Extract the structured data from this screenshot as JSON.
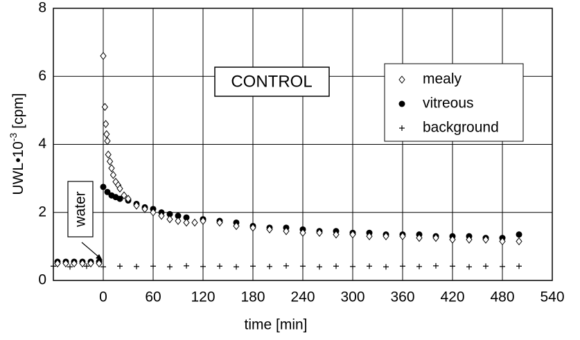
{
  "chart_data": {
    "type": "scatter",
    "xlabel": "time [min]",
    "ylabel": {
      "main": "UWL•10",
      "sup": "-3",
      "unit": "[cpm]"
    },
    "annotations": [
      "CONTROL",
      "water"
    ],
    "xlim": [
      -60,
      540
    ],
    "xticks": [
      0,
      60,
      120,
      180,
      240,
      300,
      360,
      420,
      480,
      540
    ],
    "ylim": [
      0,
      8
    ],
    "yticks": [
      0,
      2,
      4,
      6,
      8
    ],
    "grid": true,
    "legend": "upper right",
    "series": [
      {
        "name": "mealy",
        "marker": "open-diamond",
        "color": "#000000",
        "x": [
          -55,
          -45,
          -35,
          -25,
          -15,
          -5,
          0,
          2,
          3,
          4,
          5,
          6,
          8,
          10,
          12,
          15,
          18,
          20,
          25,
          30,
          40,
          50,
          60,
          70,
          80,
          90,
          100,
          110,
          120,
          140,
          160,
          180,
          200,
          220,
          240,
          260,
          280,
          300,
          320,
          340,
          360,
          380,
          400,
          420,
          440,
          460,
          480,
          500
        ],
        "values": [
          0.5,
          0.5,
          0.5,
          0.5,
          0.5,
          0.5,
          6.6,
          5.1,
          4.6,
          4.3,
          4.1,
          3.7,
          3.5,
          3.3,
          3.1,
          2.9,
          2.8,
          2.7,
          2.5,
          2.4,
          2.2,
          2.1,
          2.0,
          1.9,
          1.8,
          1.75,
          1.7,
          1.7,
          1.75,
          1.7,
          1.6,
          1.55,
          1.5,
          1.45,
          1.4,
          1.4,
          1.35,
          1.35,
          1.3,
          1.3,
          1.3,
          1.25,
          1.25,
          1.2,
          1.2,
          1.2,
          1.15,
          1.15
        ]
      },
      {
        "name": "vitreous",
        "marker": "filled-circle",
        "color": "#000000",
        "x": [
          -55,
          -45,
          -35,
          -25,
          -15,
          -5,
          0,
          5,
          10,
          15,
          20,
          30,
          40,
          50,
          60,
          70,
          80,
          90,
          100,
          120,
          140,
          160,
          180,
          200,
          220,
          240,
          260,
          280,
          300,
          320,
          340,
          360,
          380,
          400,
          420,
          440,
          460,
          480,
          500
        ],
        "values": [
          0.55,
          0.55,
          0.55,
          0.55,
          0.55,
          0.55,
          2.75,
          2.6,
          2.5,
          2.45,
          2.4,
          2.35,
          2.25,
          2.15,
          2.1,
          2.0,
          1.95,
          1.9,
          1.85,
          1.8,
          1.75,
          1.7,
          1.6,
          1.55,
          1.55,
          1.5,
          1.45,
          1.45,
          1.4,
          1.4,
          1.35,
          1.35,
          1.35,
          1.3,
          1.3,
          1.3,
          1.25,
          1.25,
          1.35
        ]
      },
      {
        "name": "background",
        "marker": "plus",
        "color": "#000000",
        "x": [
          -60,
          -40,
          -20,
          0,
          20,
          40,
          60,
          80,
          100,
          120,
          140,
          160,
          180,
          200,
          220,
          240,
          260,
          280,
          300,
          320,
          340,
          360,
          380,
          400,
          420,
          440,
          460,
          480,
          500
        ],
        "values": [
          0.42,
          0.4,
          0.42,
          0.4,
          0.42,
          0.41,
          0.42,
          0.4,
          0.43,
          0.41,
          0.42,
          0.4,
          0.42,
          0.41,
          0.43,
          0.42,
          0.4,
          0.42,
          0.41,
          0.42,
          0.4,
          0.42,
          0.41,
          0.43,
          0.42,
          0.4,
          0.42,
          0.41,
          0.42
        ]
      }
    ]
  }
}
